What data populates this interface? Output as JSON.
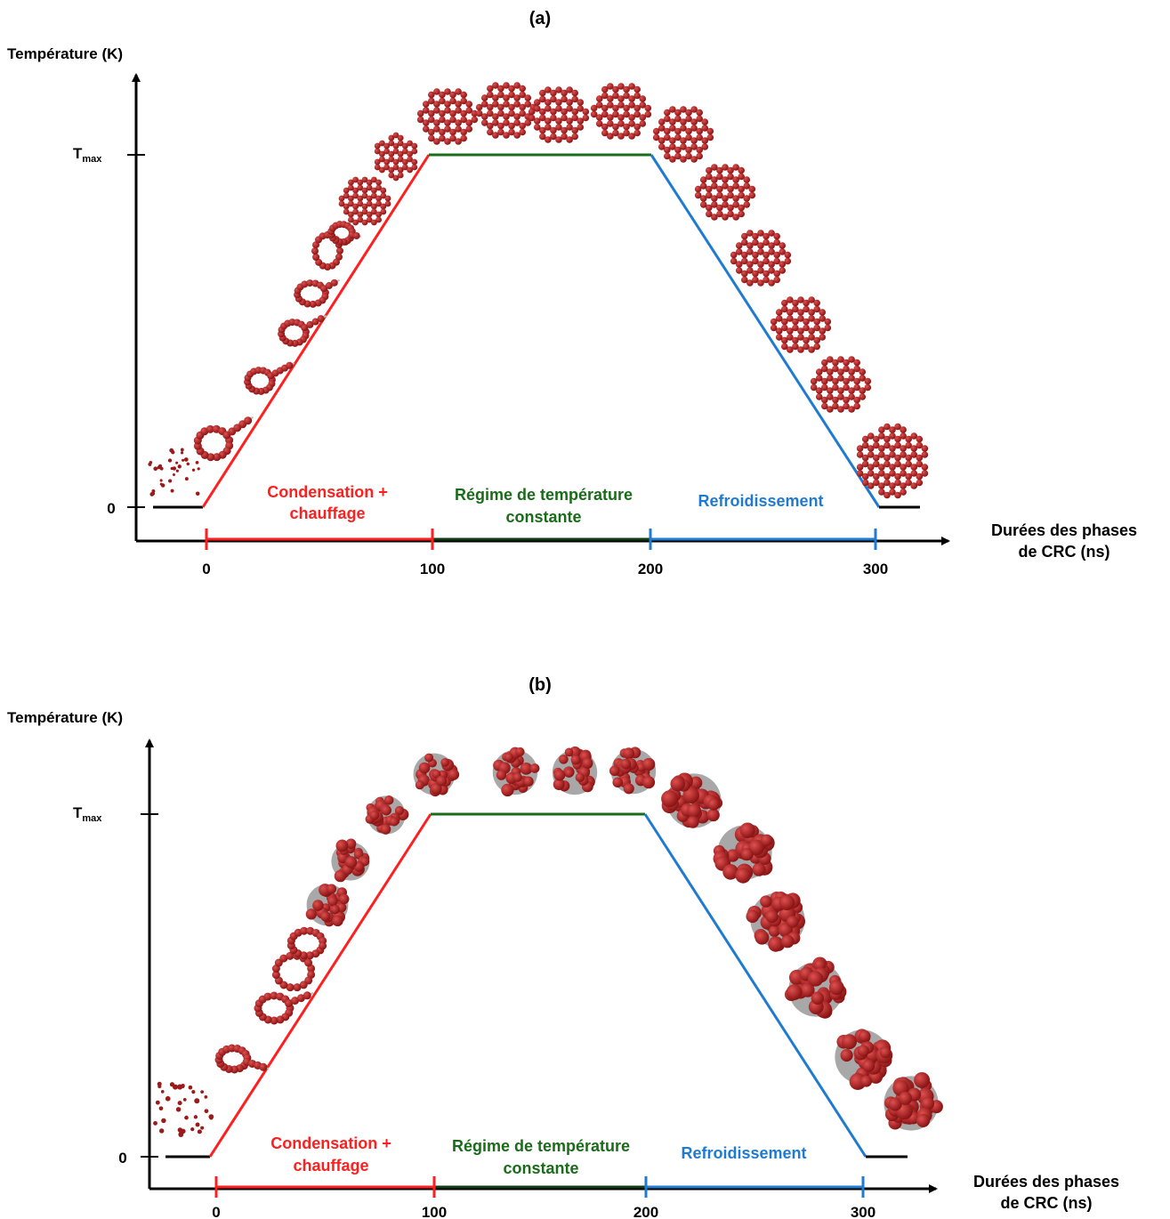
{
  "colors": {
    "axis": "#000000",
    "heating": "#ff1f1f",
    "constant": "#1a6b1a",
    "constant_dark": "#123d12",
    "cooling": "#1f7ad1",
    "atom": "#9b1b1b",
    "atom_light": "#c84040",
    "bond": "#bdbdbd"
  },
  "panels": [
    {
      "label": "(a)",
      "y_axis_title": "Température (K)",
      "x_axis_title_line1": "Durées des phases",
      "x_axis_title_line2": "de CRC  (ns)",
      "y_tick_zero": "0",
      "y_tick_max_main": "T",
      "y_tick_max_sub": "max",
      "x_ticks": [
        "0",
        "100",
        "200",
        "300"
      ],
      "phase_heating_line1": "Condensation +",
      "phase_heating_line2": "chauffage",
      "phase_constant_line1": "Régime de température",
      "phase_constant_line2": "constante",
      "phase_cooling": "Refroidissement",
      "structure_style": "planar"
    },
    {
      "label": "(b)",
      "y_axis_title": "Température (K)",
      "x_axis_title_line1": "Durées des phases",
      "x_axis_title_line2": "de CRC (ns)",
      "y_tick_zero": "0",
      "y_tick_max_main": "T",
      "y_tick_max_sub": "max",
      "x_ticks": [
        "0",
        "100",
        "200",
        "300"
      ],
      "phase_heating_line1": "Condensation +",
      "phase_heating_line2": "chauffage",
      "phase_constant_line1": "Régime de température",
      "phase_constant_line2": "constante",
      "phase_cooling": "Refroidissement",
      "structure_style": "cage"
    }
  ]
}
